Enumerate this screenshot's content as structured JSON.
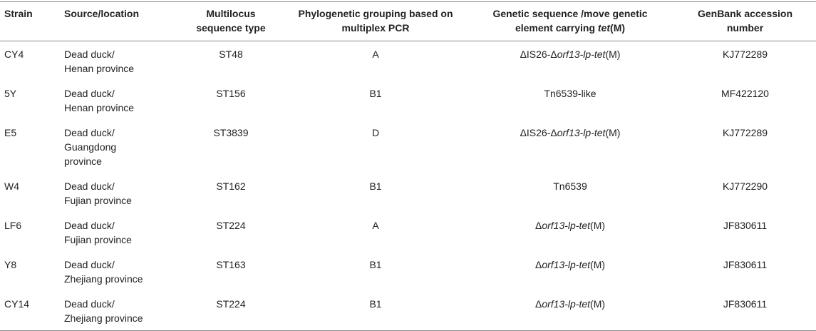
{
  "headers": {
    "strain": "Strain",
    "source": "Source/location",
    "mlst_line1": "Multilocus",
    "mlst_line2": "sequence type",
    "phylo_line1": "Phylogenetic grouping based on",
    "phylo_line2": "multiplex PCR",
    "genetic_line1": "Genetic sequence /move genetic",
    "genetic_line2_pre": "element carrying ",
    "genetic_line2_italic": "tet",
    "genetic_line2_post": "(M)",
    "genbank_line1": "GenBank accession",
    "genbank_line2": "number"
  },
  "rows": [
    {
      "strain": "CY4",
      "source_l1": "Dead duck/",
      "source_l2": "Henan province",
      "source_l3": "",
      "mlst": "ST48",
      "phylo": "A",
      "gen_pre": "ΔIS26-Δ",
      "gen_i1": "orf13-lp-tet",
      "gen_post": "(M)",
      "genbank": "KJ772289"
    },
    {
      "strain": "5Y",
      "source_l1": "Dead duck/",
      "source_l2": "Henan province",
      "source_l3": "",
      "mlst": "ST156",
      "phylo": "B1",
      "gen_pre": "Tn6539-like",
      "gen_i1": "",
      "gen_post": "",
      "genbank": "MF422120"
    },
    {
      "strain": "E5",
      "source_l1": "Dead duck/",
      "source_l2": "Guangdong",
      "source_l3": "province",
      "mlst": "ST3839",
      "phylo": "D",
      "gen_pre": "ΔIS26-Δ",
      "gen_i1": "orf13-lp-tet",
      "gen_post": "(M)",
      "genbank": "KJ772289"
    },
    {
      "strain": "W4",
      "source_l1": "Dead duck/",
      "source_l2": "Fujian province",
      "source_l3": "",
      "mlst": "ST162",
      "phylo": "B1",
      "gen_pre": "Tn6539",
      "gen_i1": "",
      "gen_post": "",
      "genbank": "KJ772290"
    },
    {
      "strain": "LF6",
      "source_l1": "Dead duck/",
      "source_l2": "Fujian province",
      "source_l3": "",
      "mlst": "ST224",
      "phylo": "A",
      "gen_pre": "Δ",
      "gen_i1": "orf13-lp-tet",
      "gen_post": "(M)",
      "genbank": "JF830611"
    },
    {
      "strain": "Y8",
      "source_l1": "Dead duck/",
      "source_l2": "Zhejiang province",
      "source_l3": "",
      "mlst": "ST163",
      "phylo": "B1",
      "gen_pre": "Δ",
      "gen_i1": "orf13-lp-tet",
      "gen_post": "(M)",
      "genbank": "JF830611"
    },
    {
      "strain": "CY14",
      "source_l1": "Dead duck/",
      "source_l2": "Zhejiang province",
      "source_l3": "",
      "mlst": "ST224",
      "phylo": "B1",
      "gen_pre": "Δ",
      "gen_i1": "orf13-lp-tet",
      "gen_post": "(M)",
      "genbank": "JF830611"
    }
  ]
}
